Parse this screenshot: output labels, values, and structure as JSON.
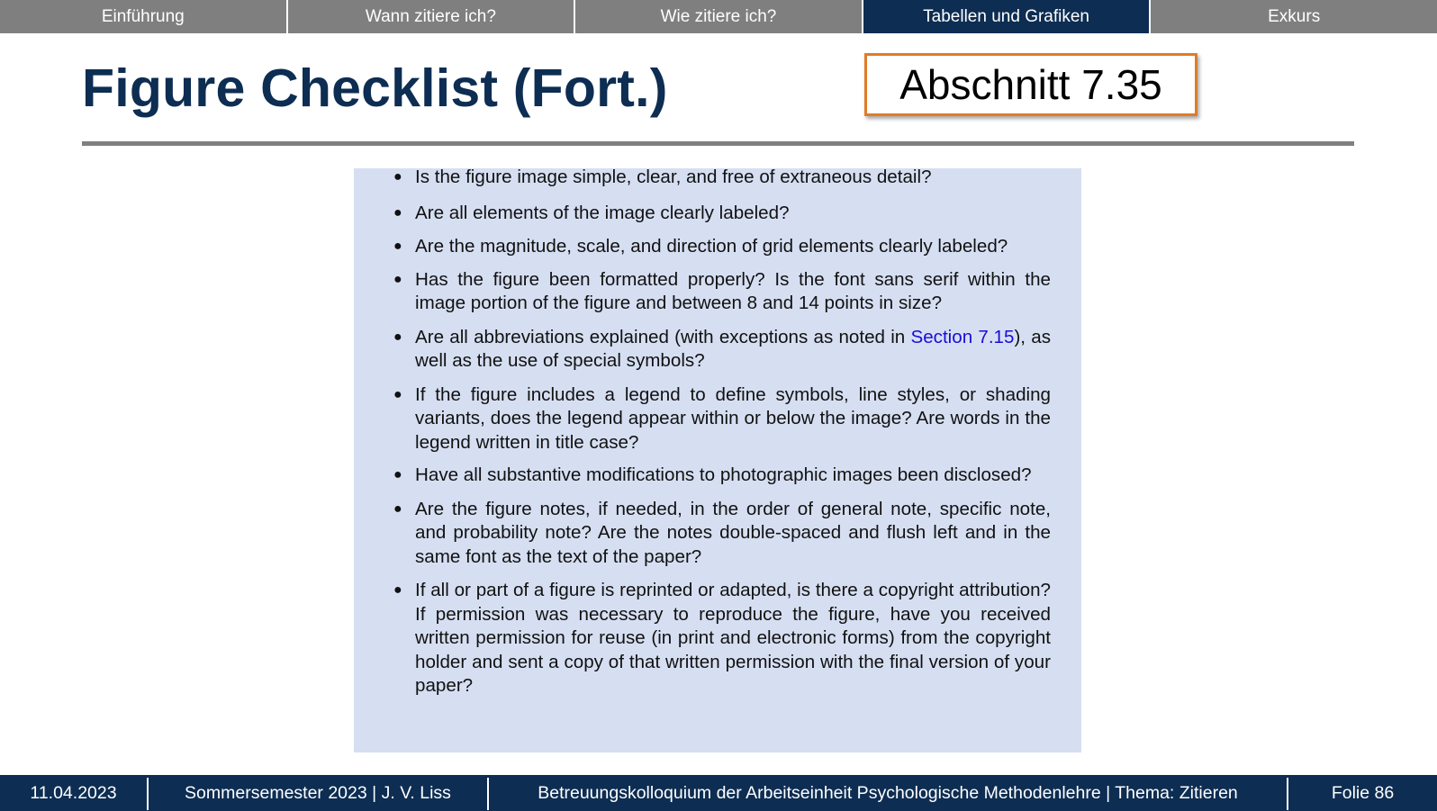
{
  "nav": {
    "tabs": [
      {
        "label": "Einführung"
      },
      {
        "label": "Wann zitiere ich?"
      },
      {
        "label": "Wie zitiere ich?"
      },
      {
        "label": "Tabellen und Grafiken"
      },
      {
        "label": "Exkurs"
      }
    ],
    "active_tab": "Tabellen und Grafiken"
  },
  "slide": {
    "title": "Figure Checklist (Fort.)",
    "section_label": "Abschnitt 7.35"
  },
  "checklist": {
    "items": [
      {
        "text": "Is the figure image simple, clear, and free of extraneous detail?"
      },
      {
        "text": "Are all elements of the image clearly labeled?"
      },
      {
        "text": "Are the magnitude, scale, and direction of grid elements clearly labeled?"
      },
      {
        "text": "Has the figure been formatted properly? Is the font sans serif within the image portion of the figure and between 8 and 14 points in size?"
      },
      {
        "before": "Are all abbreviations explained (with exceptions as noted in ",
        "link": "Section 7.15",
        "after": "), as well as the use of special symbols?"
      },
      {
        "text": "If the figure includes a legend to define symbols, line styles, or shading variants, does the legend appear within or below the image? Are words in the legend written in title case?"
      },
      {
        "text": "Have all substantive modifications to photographic images been disclosed?"
      },
      {
        "text": "Are the figure notes, if needed, in the order of general note, specific note, and probability note? Are the notes double-spaced and flush left and in the same font as the text of the paper?"
      },
      {
        "text": "If all or part of a figure is reprinted or adapted, is there a copyright attribution? If permission was necessary to reproduce the figure, have you received written permission for reuse (in print and electronic forms) from the copyright holder and sent a copy of that written permission with the final version of your paper?"
      }
    ]
  },
  "footer": {
    "date": "11.04.2023",
    "semester": "Sommersemester 2023 | J. V. Liss",
    "course": "Betreuungskolloquium der Arbeitseinheit Psychologische Methodenlehre | Thema: Zitieren",
    "slide_number": "Folie 86"
  },
  "colors": {
    "nav_bg": "#7f7f7f",
    "accent_dark_blue": "#0d2d52",
    "section_border": "#e07b27",
    "panel_bg": "#d6dff2",
    "link": "#1a0dd8"
  }
}
